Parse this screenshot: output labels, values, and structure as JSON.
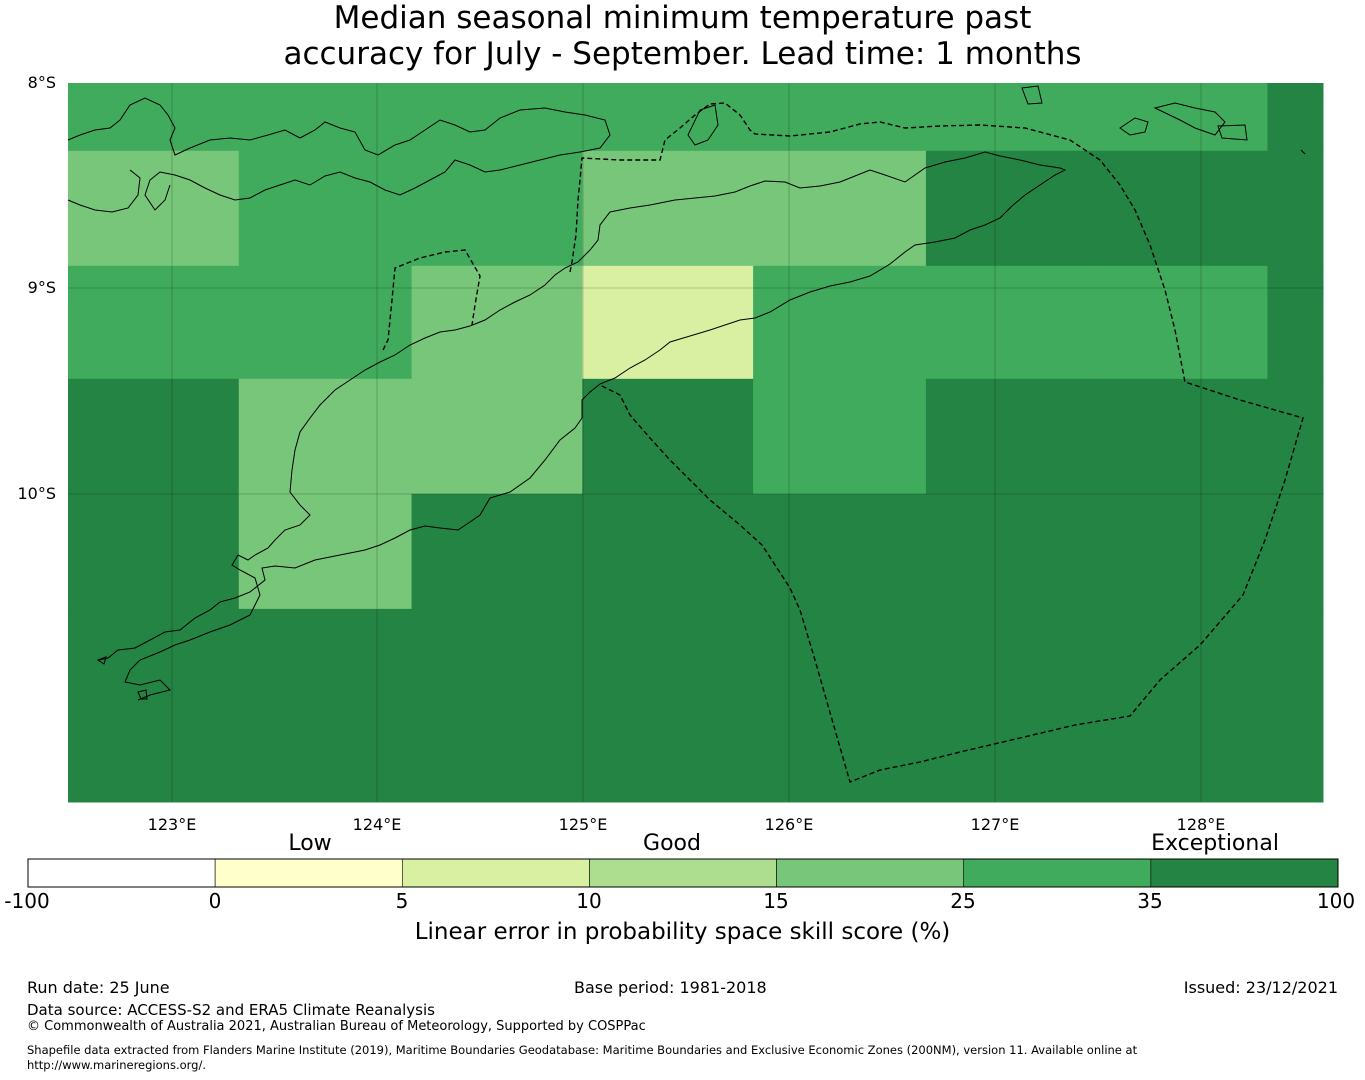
{
  "title": {
    "line1": "Median seasonal minimum temperature past",
    "line2": "accuracy for July - September. Lead time: 1 months"
  },
  "map": {
    "lat_labels": [
      "8°S",
      "9°S",
      "10°S"
    ],
    "lon_labels": [
      "123°E",
      "124°E",
      "125°E",
      "126°E",
      "127°E",
      "128°E"
    ],
    "lon_range": [
      122.5,
      128.6
    ],
    "lat_range": [
      -11.5,
      -8.0
    ],
    "grid_cell_size_deg": 0.833,
    "cells_lon_edges": [
      122.5,
      123.33,
      124.17,
      125.0,
      125.83,
      126.67,
      127.5,
      128.33,
      128.6
    ],
    "cells_lat_edges": [
      -8.0,
      -8.33,
      -8.89,
      -9.44,
      -10.0,
      -10.56,
      -11.5
    ],
    "cell_values_percent": [
      [
        30,
        30,
        30,
        30,
        30,
        30,
        30,
        40
      ],
      [
        20,
        30,
        30,
        20,
        15,
        40,
        40,
        40
      ],
      [
        30,
        30,
        20,
        8,
        30,
        30,
        30,
        40
      ],
      [
        40,
        20,
        15,
        40,
        30,
        40,
        40,
        40
      ],
      [
        40,
        20,
        40,
        40,
        40,
        40,
        40,
        40
      ],
      [
        40,
        40,
        40,
        40,
        40,
        40,
        40,
        40
      ]
    ],
    "eez_boundary": "dashed"
  },
  "colorbar": {
    "groups": [
      "Low",
      "Good",
      "Exceptional"
    ],
    "ticks": [
      "-100",
      "0",
      "5",
      "10",
      "15",
      "25",
      "35",
      "100"
    ],
    "colors": [
      "#ffffff",
      "#ffffcc",
      "#d9f0a3",
      "#addd8e",
      "#78c679",
      "#41ab5d",
      "#238443"
    ],
    "label": "Linear error in probability space skill score (%)"
  },
  "footer": {
    "run_date": "Run date: 25 June",
    "base_period": "Base period: 1981-2018",
    "issued": "Issued: 23/12/2021",
    "data_source": "Data source: ACCESS-S2 and ERA5 Climate Reanalysis",
    "copyright": "© Commonwealth of Australia 2021, Australian Bureau of Meteorology, Supported by COSPPac",
    "shapefile_line1": "Shapefile data extracted from Flanders Marine Institute (2019), Maritime Boundaries Geodatabase: Maritime Boundaries and Exclusive Economic Zones (200NM), version 11. Available online at",
    "shapefile_line2": "http://www.marineregions.org/."
  }
}
